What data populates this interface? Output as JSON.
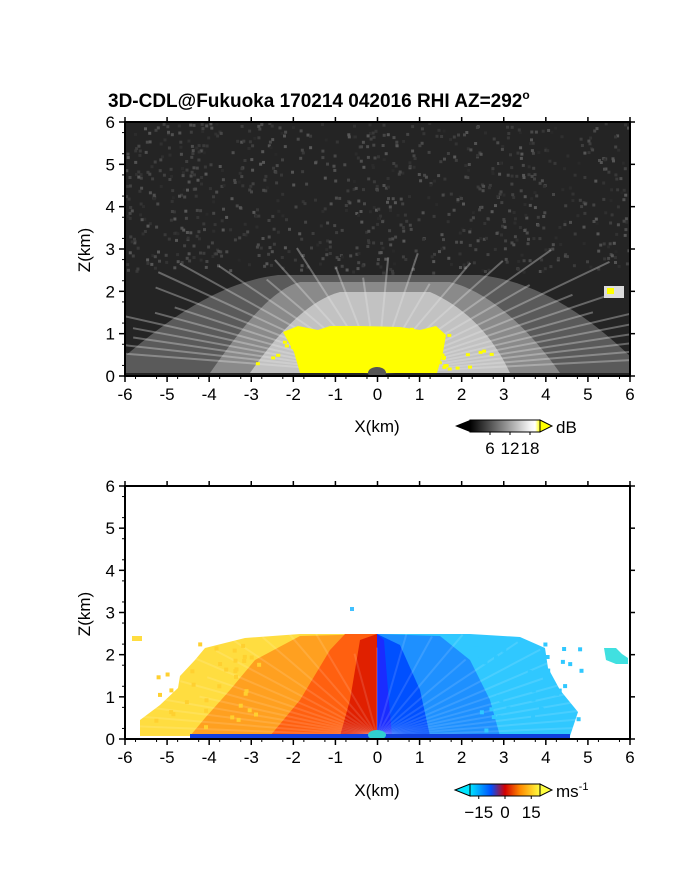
{
  "title": {
    "text": "3D-CDL@Fukuoka 170214 042016 RHI AZ=292",
    "degree_symbol": "o"
  },
  "chart_data": [
    {
      "type": "heatmap",
      "quantity": "backscatter intensity",
      "xlabel": "X(km)",
      "ylabel": "Z(km)",
      "xlim": [
        -6,
        6
      ],
      "ylim": [
        0,
        6
      ],
      "x_ticks": [
        "-6",
        "-5",
        "-4",
        "-3",
        "-2",
        "-1",
        "0",
        "1",
        "2",
        "3",
        "4",
        "5",
        "6"
      ],
      "y_ticks": [
        "0",
        "1",
        "2",
        "3",
        "4",
        "5",
        "6"
      ],
      "colorbar": {
        "unit": "dB",
        "ticks": [
          "6",
          "12",
          "18"
        ],
        "tick_values": [
          6,
          12,
          18
        ],
        "range": [
          0,
          21
        ],
        "colors": [
          "#000000",
          "#ffffff",
          "#ffff00"
        ]
      },
      "features": [
        {
          "kind": "echo-fan",
          "x_range": [
            -6,
            6
          ],
          "z_top": 2.4
        },
        {
          "kind": "saturated-core",
          "color": "#ffff00",
          "x_range": [
            -2.2,
            1.7
          ],
          "z_top": 1.2
        },
        {
          "kind": "isolated-echo",
          "color": "#ffff00",
          "x": 5.6,
          "z": 2.0
        }
      ]
    },
    {
      "type": "heatmap",
      "quantity": "radial velocity",
      "xlabel": "X(km)",
      "ylabel": "Z(km)",
      "xlim": [
        -6,
        6
      ],
      "ylim": [
        0,
        6
      ],
      "x_ticks": [
        "-6",
        "-5",
        "-4",
        "-3",
        "-2",
        "-1",
        "0",
        "1",
        "2",
        "3",
        "4",
        "5",
        "6"
      ],
      "y_ticks": [
        "0",
        "1",
        "2",
        "3",
        "4",
        "5",
        "6"
      ],
      "colorbar": {
        "unit": "ms",
        "unit_exponent": "-1",
        "ticks": [
          "−15",
          "0",
          "15"
        ],
        "tick_values": [
          -15,
          0,
          15
        ],
        "range": [
          -20,
          20
        ],
        "colors": [
          "#00e5ff",
          "#0040ff",
          "#d40000",
          "#ff9000",
          "#ffff30"
        ]
      },
      "features": [
        {
          "kind": "positive-velocity-fan",
          "x_range": [
            -5.8,
            0
          ],
          "z_top": 2.4,
          "velocity": [
            1,
            15
          ]
        },
        {
          "kind": "negative-velocity-fan",
          "x_range": [
            0,
            4.6
          ],
          "z_top": 2.4,
          "velocity": [
            -15,
            -1
          ]
        },
        {
          "kind": "isolated-echo",
          "x": 5.7,
          "z": 2.0,
          "velocity": -13
        }
      ]
    }
  ]
}
